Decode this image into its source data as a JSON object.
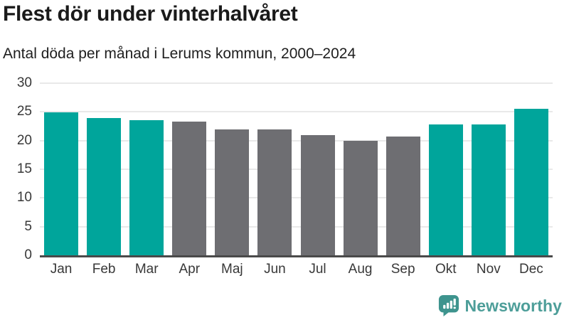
{
  "chart_data": {
    "type": "bar",
    "title": "Flest dör under vinterhalvåret",
    "subtitle": "Antal döda per månad i Lerums kommun, 2000–2024",
    "categories": [
      "Jan",
      "Feb",
      "Mar",
      "Apr",
      "Maj",
      "Jun",
      "Jul",
      "Aug",
      "Sep",
      "Okt",
      "Nov",
      "Dec"
    ],
    "values": [
      24.9,
      23.9,
      23.6,
      23.3,
      22.0,
      21.9,
      20.9,
      20.0,
      20.7,
      22.8,
      22.8,
      25.6
    ],
    "bar_colors": [
      "teal",
      "teal",
      "teal",
      "gray",
      "gray",
      "gray",
      "gray",
      "gray",
      "gray",
      "teal",
      "teal",
      "teal"
    ],
    "palette": {
      "teal": "#00A59B",
      "gray": "#6E6E72"
    },
    "xlabel": "",
    "ylabel": "",
    "ylim": [
      0,
      30
    ],
    "yticks": [
      0,
      5,
      10,
      15,
      20,
      25,
      30
    ],
    "grid": "horizontal",
    "legend_position": "none",
    "axis_color": "#4a4a4a",
    "gridline_color": "#e9e9e9"
  },
  "footer": {
    "brand": "Newsworthy",
    "brand_color": "#4D9E99",
    "icon": "newsworthy-speech-bubble-chart-icon",
    "icon_color": "#3E948E"
  }
}
